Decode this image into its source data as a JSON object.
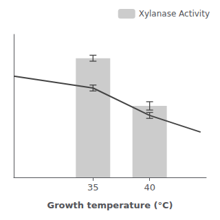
{
  "chart_data": {
    "type": "bar",
    "xlabel": "Growth temperature (°C)",
    "xlim": [
      28,
      45
    ],
    "xticks": [
      35,
      40
    ],
    "ylim": [
      0,
      120
    ],
    "tick_labels": "x",
    "grid": false,
    "legend": "upper right",
    "series": [
      {
        "name": "Xylanase Activity",
        "type": "bar",
        "color": "#cccccc",
        "x": [
          35,
          40
        ],
        "values": [
          100,
          60
        ],
        "errors": [
          2.5,
          3.5
        ]
      },
      {
        "type": "line",
        "color": "#444444",
        "x": [
          28,
          35,
          40,
          44.5
        ],
        "values": [
          85,
          75,
          52,
          38
        ],
        "errors": [
          null,
          2.5,
          2.5,
          null
        ]
      }
    ]
  }
}
